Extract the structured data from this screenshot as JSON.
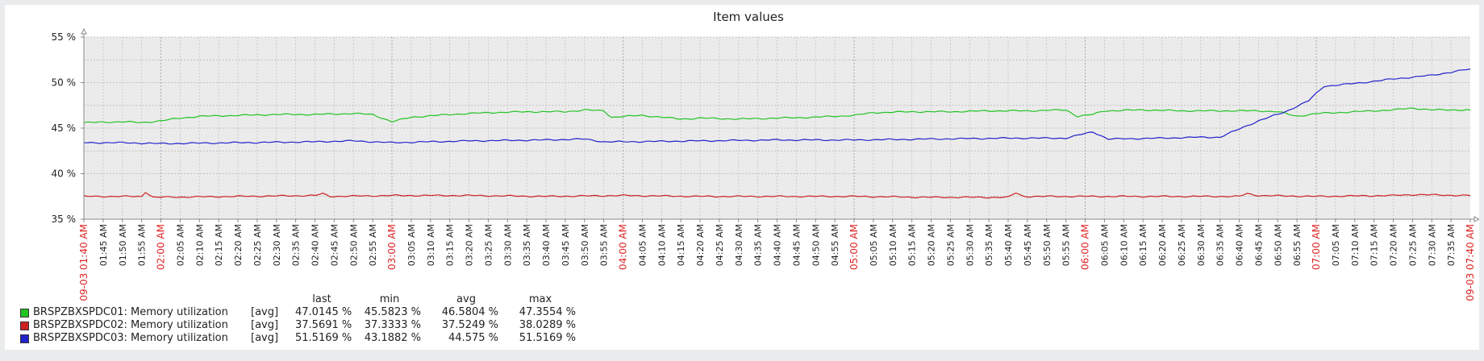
{
  "chart_data": {
    "type": "line",
    "title": "Item values",
    "ylim": [
      35,
      55
    ],
    "y_ticks": [
      "35 %",
      "40 %",
      "45 %",
      "50 %",
      "55 %"
    ],
    "x_start": "09-03 01:40 AM",
    "x_end": "09-03 07:40 AM",
    "x_ticks": [
      {
        "label": "09-03 01:40 AM",
        "minutes": 0,
        "major": true
      },
      {
        "label": "01:45 AM",
        "minutes": 5,
        "major": false
      },
      {
        "label": "01:50 AM",
        "minutes": 10,
        "major": false
      },
      {
        "label": "01:55 AM",
        "minutes": 15,
        "major": false
      },
      {
        "label": "02:00 AM",
        "minutes": 20,
        "major": true
      },
      {
        "label": "02:05 AM",
        "minutes": 25,
        "major": false
      },
      {
        "label": "02:10 AM",
        "minutes": 30,
        "major": false
      },
      {
        "label": "02:15 AM",
        "minutes": 35,
        "major": false
      },
      {
        "label": "02:20 AM",
        "minutes": 40,
        "major": false
      },
      {
        "label": "02:25 AM",
        "minutes": 45,
        "major": false
      },
      {
        "label": "02:30 AM",
        "minutes": 50,
        "major": false
      },
      {
        "label": "02:35 AM",
        "minutes": 55,
        "major": false
      },
      {
        "label": "02:40 AM",
        "minutes": 60,
        "major": false
      },
      {
        "label": "02:45 AM",
        "minutes": 65,
        "major": false
      },
      {
        "label": "02:50 AM",
        "minutes": 70,
        "major": false
      },
      {
        "label": "02:55 AM",
        "minutes": 75,
        "major": false
      },
      {
        "label": "03:00 AM",
        "minutes": 80,
        "major": true
      },
      {
        "label": "03:05 AM",
        "minutes": 85,
        "major": false
      },
      {
        "label": "03:10 AM",
        "minutes": 90,
        "major": false
      },
      {
        "label": "03:15 AM",
        "minutes": 95,
        "major": false
      },
      {
        "label": "03:20 AM",
        "minutes": 100,
        "major": false
      },
      {
        "label": "03:25 AM",
        "minutes": 105,
        "major": false
      },
      {
        "label": "03:30 AM",
        "minutes": 110,
        "major": false
      },
      {
        "label": "03:35 AM",
        "minutes": 115,
        "major": false
      },
      {
        "label": "03:40 AM",
        "minutes": 120,
        "major": false
      },
      {
        "label": "03:45 AM",
        "minutes": 125,
        "major": false
      },
      {
        "label": "03:50 AM",
        "minutes": 130,
        "major": false
      },
      {
        "label": "03:55 AM",
        "minutes": 135,
        "major": false
      },
      {
        "label": "04:00 AM",
        "minutes": 140,
        "major": true
      },
      {
        "label": "04:05 AM",
        "minutes": 145,
        "major": false
      },
      {
        "label": "04:10 AM",
        "minutes": 150,
        "major": false
      },
      {
        "label": "04:15 AM",
        "minutes": 155,
        "major": false
      },
      {
        "label": "04:20 AM",
        "minutes": 160,
        "major": false
      },
      {
        "label": "04:25 AM",
        "minutes": 165,
        "major": false
      },
      {
        "label": "04:30 AM",
        "minutes": 170,
        "major": false
      },
      {
        "label": "04:35 AM",
        "minutes": 175,
        "major": false
      },
      {
        "label": "04:40 AM",
        "minutes": 180,
        "major": false
      },
      {
        "label": "04:45 AM",
        "minutes": 185,
        "major": false
      },
      {
        "label": "04:50 AM",
        "minutes": 190,
        "major": false
      },
      {
        "label": "04:55 AM",
        "minutes": 195,
        "major": false
      },
      {
        "label": "05:00 AM",
        "minutes": 200,
        "major": true
      },
      {
        "label": "05:05 AM",
        "minutes": 205,
        "major": false
      },
      {
        "label": "05:10 AM",
        "minutes": 210,
        "major": false
      },
      {
        "label": "05:15 AM",
        "minutes": 215,
        "major": false
      },
      {
        "label": "05:20 AM",
        "minutes": 220,
        "major": false
      },
      {
        "label": "05:25 AM",
        "minutes": 225,
        "major": false
      },
      {
        "label": "05:30 AM",
        "minutes": 230,
        "major": false
      },
      {
        "label": "05:35 AM",
        "minutes": 235,
        "major": false
      },
      {
        "label": "05:40 AM",
        "minutes": 240,
        "major": false
      },
      {
        "label": "05:45 AM",
        "minutes": 245,
        "major": false
      },
      {
        "label": "05:50 AM",
        "minutes": 250,
        "major": false
      },
      {
        "label": "05:55 AM",
        "minutes": 255,
        "major": false
      },
      {
        "label": "06:00 AM",
        "minutes": 260,
        "major": true
      },
      {
        "label": "06:05 AM",
        "minutes": 265,
        "major": false
      },
      {
        "label": "06:10 AM",
        "minutes": 270,
        "major": false
      },
      {
        "label": "06:15 AM",
        "minutes": 275,
        "major": false
      },
      {
        "label": "06:20 AM",
        "minutes": 280,
        "major": false
      },
      {
        "label": "06:25 AM",
        "minutes": 285,
        "major": false
      },
      {
        "label": "06:30 AM",
        "minutes": 290,
        "major": false
      },
      {
        "label": "06:35 AM",
        "minutes": 295,
        "major": false
      },
      {
        "label": "06:40 AM",
        "minutes": 300,
        "major": false
      },
      {
        "label": "06:45 AM",
        "minutes": 305,
        "major": false
      },
      {
        "label": "06:50 AM",
        "minutes": 310,
        "major": false
      },
      {
        "label": "06:55 AM",
        "minutes": 315,
        "major": false
      },
      {
        "label": "07:00 AM",
        "minutes": 320,
        "major": true
      },
      {
        "label": "07:05 AM",
        "minutes": 325,
        "major": false
      },
      {
        "label": "07:10 AM",
        "minutes": 330,
        "major": false
      },
      {
        "label": "07:15 AM",
        "minutes": 335,
        "major": false
      },
      {
        "label": "07:20 AM",
        "minutes": 340,
        "major": false
      },
      {
        "label": "07:25 AM",
        "minutes": 345,
        "major": false
      },
      {
        "label": "07:30 AM",
        "minutes": 350,
        "major": false
      },
      {
        "label": "07:35 AM",
        "minutes": 355,
        "major": false
      },
      {
        "label": "09-03 07:40 AM",
        "minutes": 360,
        "major": true
      }
    ],
    "grid": true,
    "legend_position": "bottom-left",
    "legend_headers": {
      "last": "last",
      "min": "min",
      "avg": "avg",
      "max": "max"
    },
    "series": [
      {
        "name": "BRSPZBXSPDC01: Memory utilization",
        "func": "[avg]",
        "color": "#22c322",
        "last": "47.0145 %",
        "min": "45.5823 %",
        "avg": "46.5804 %",
        "max": "47.3554 %",
        "points": [
          [
            0,
            45.6
          ],
          [
            10,
            45.7
          ],
          [
            15,
            45.6
          ],
          [
            20,
            45.8
          ],
          [
            25,
            46.1
          ],
          [
            30,
            46.3
          ],
          [
            40,
            46.4
          ],
          [
            50,
            46.5
          ],
          [
            60,
            46.5
          ],
          [
            70,
            46.6
          ],
          [
            75,
            46.5
          ],
          [
            80,
            45.7
          ],
          [
            85,
            46.2
          ],
          [
            95,
            46.5
          ],
          [
            105,
            46.7
          ],
          [
            115,
            46.8
          ],
          [
            125,
            46.8
          ],
          [
            130,
            47.0
          ],
          [
            135,
            46.9
          ],
          [
            137,
            46.2
          ],
          [
            145,
            46.4
          ],
          [
            150,
            46.2
          ],
          [
            155,
            46.0
          ],
          [
            160,
            46.1
          ],
          [
            170,
            46.0
          ],
          [
            180,
            46.1
          ],
          [
            190,
            46.2
          ],
          [
            200,
            46.4
          ],
          [
            205,
            46.7
          ],
          [
            215,
            46.8
          ],
          [
            225,
            46.8
          ],
          [
            235,
            46.9
          ],
          [
            245,
            46.9
          ],
          [
            255,
            47.0
          ],
          [
            258,
            46.3
          ],
          [
            262,
            46.5
          ],
          [
            265,
            46.9
          ],
          [
            275,
            47.0
          ],
          [
            285,
            46.9
          ],
          [
            295,
            46.9
          ],
          [
            305,
            46.9
          ],
          [
            310,
            46.8
          ],
          [
            315,
            46.3
          ],
          [
            320,
            46.6
          ],
          [
            330,
            46.8
          ],
          [
            340,
            47.0
          ],
          [
            345,
            47.2
          ],
          [
            350,
            47.0
          ],
          [
            360,
            47.0
          ]
        ]
      },
      {
        "name": "BRSPZBXSPDC02: Memory utilization",
        "func": "[avg]",
        "color": "#cc2222",
        "last": "37.5691 %",
        "min": "37.3333 %",
        "avg": "37.5249 %",
        "max": "38.0289 %",
        "points": [
          [
            0,
            37.5
          ],
          [
            15,
            37.5
          ],
          [
            16,
            38.0
          ],
          [
            18,
            37.4
          ],
          [
            40,
            37.5
          ],
          [
            60,
            37.6
          ],
          [
            62,
            37.8
          ],
          [
            64,
            37.5
          ],
          [
            80,
            37.6
          ],
          [
            100,
            37.6
          ],
          [
            120,
            37.5
          ],
          [
            140,
            37.6
          ],
          [
            160,
            37.5
          ],
          [
            180,
            37.5
          ],
          [
            200,
            37.5
          ],
          [
            220,
            37.4
          ],
          [
            240,
            37.4
          ],
          [
            242,
            37.9
          ],
          [
            244,
            37.5
          ],
          [
            260,
            37.5
          ],
          [
            280,
            37.5
          ],
          [
            300,
            37.5
          ],
          [
            302,
            37.8
          ],
          [
            305,
            37.6
          ],
          [
            320,
            37.5
          ],
          [
            340,
            37.6
          ],
          [
            345,
            37.7
          ],
          [
            360,
            37.6
          ]
        ]
      },
      {
        "name": "BRSPZBXSPDC03: Memory utilization",
        "func": "[avg]",
        "color": "#2222cc",
        "last": "51.5169 %",
        "min": "43.1882 %",
        "avg": "44.575 %",
        "max": "51.5169 %",
        "points": [
          [
            0,
            43.4
          ],
          [
            10,
            43.4
          ],
          [
            20,
            43.3
          ],
          [
            40,
            43.4
          ],
          [
            60,
            43.5
          ],
          [
            70,
            43.6
          ],
          [
            80,
            43.4
          ],
          [
            100,
            43.6
          ],
          [
            120,
            43.7
          ],
          [
            130,
            43.8
          ],
          [
            135,
            43.5
          ],
          [
            140,
            43.5
          ],
          [
            160,
            43.6
          ],
          [
            180,
            43.7
          ],
          [
            200,
            43.7
          ],
          [
            220,
            43.8
          ],
          [
            240,
            43.9
          ],
          [
            255,
            43.9
          ],
          [
            262,
            44.6
          ],
          [
            266,
            43.8
          ],
          [
            280,
            43.9
          ],
          [
            290,
            44.0
          ],
          [
            295,
            44.0
          ],
          [
            305,
            45.8
          ],
          [
            312,
            46.8
          ],
          [
            318,
            48.0
          ],
          [
            322,
            49.6
          ],
          [
            330,
            49.9
          ],
          [
            340,
            50.4
          ],
          [
            350,
            50.8
          ],
          [
            360,
            51.5
          ]
        ]
      }
    ]
  }
}
